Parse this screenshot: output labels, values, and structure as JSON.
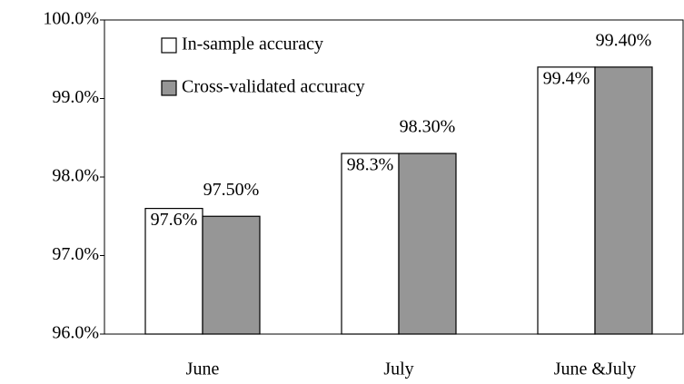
{
  "chart_data": {
    "type": "bar",
    "categories": [
      "June",
      "July",
      "June &July"
    ],
    "series": [
      {
        "name": "In-sample accuracy",
        "color": "#ffffff",
        "values": [
          97.6,
          98.3,
          99.4
        ],
        "value_labels": [
          "97.6%",
          "98.3%",
          "99.4%"
        ]
      },
      {
        "name": "Cross-validated accuracy",
        "color": "#969696",
        "values": [
          97.5,
          98.3,
          99.4
        ],
        "value_labels": [
          "97.50%",
          "98.30%",
          "99.40%"
        ]
      }
    ],
    "ylim": [
      96,
      100
    ],
    "yticks": [
      {
        "value": 96,
        "label": "96.0%"
      },
      {
        "value": 97,
        "label": "97.0%"
      },
      {
        "value": 98,
        "label": "98.0%"
      },
      {
        "value": 99,
        "label": "99.0%"
      },
      {
        "value": 100,
        "label": "100.0%"
      }
    ],
    "legend": "upper-left"
  }
}
